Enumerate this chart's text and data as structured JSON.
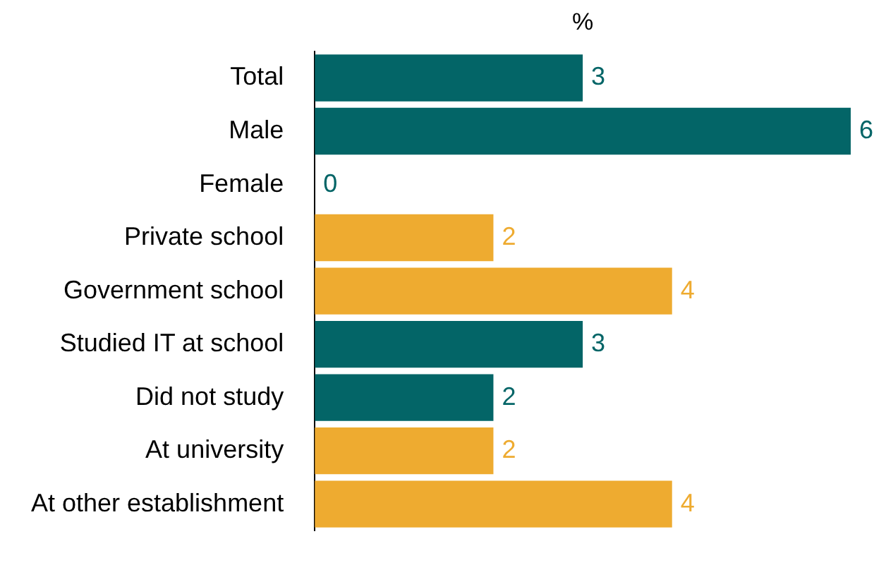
{
  "chart_data": {
    "type": "bar",
    "orientation": "horizontal",
    "xlabel": "%",
    "categories": [
      "Total",
      "Male",
      "Female",
      "Private school",
      "Government school",
      "Studied IT at school",
      "Did not study",
      "At university",
      "At other establishment"
    ],
    "values": [
      3,
      6,
      0,
      2,
      4,
      3,
      2,
      2,
      4
    ],
    "colors": [
      "#036567",
      "#036567",
      "#036567",
      "#eeab30",
      "#eeab30",
      "#036567",
      "#036567",
      "#eeab30",
      "#eeab30"
    ],
    "data_labels": true,
    "grid": false,
    "legend": false
  }
}
